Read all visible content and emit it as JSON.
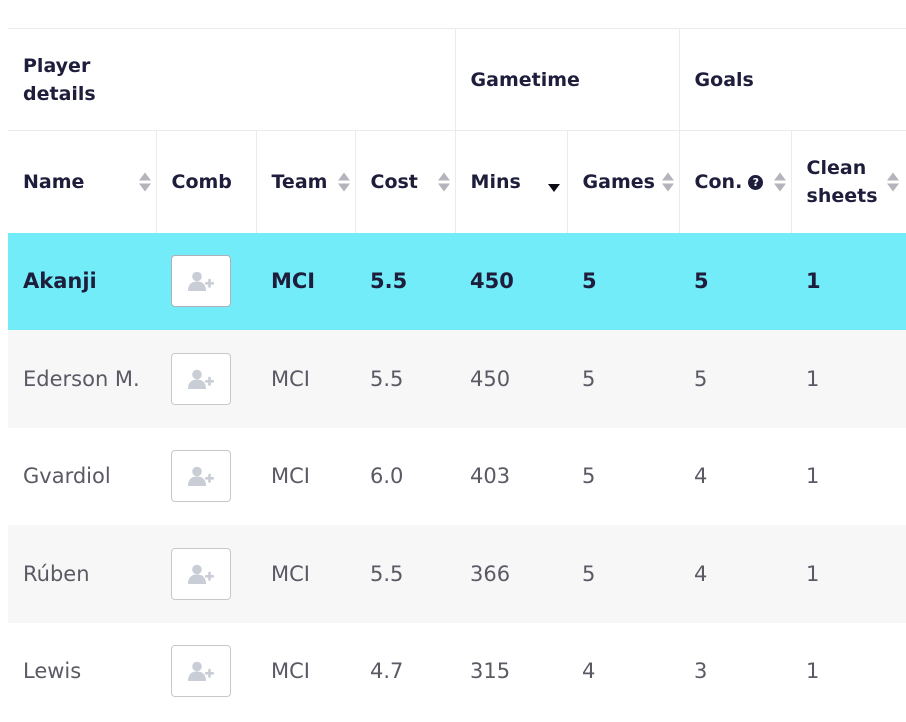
{
  "groups": [
    {
      "label": "Player details"
    },
    {
      "label": "Gametime"
    },
    {
      "label": "Goals"
    }
  ],
  "columns": {
    "name": "Name",
    "comb": "Comb",
    "team": "Team",
    "cost": "Cost",
    "mins": "Mins",
    "games": "Games",
    "con": "Con.",
    "clean_sheets": "Clean sheets"
  },
  "sort": {
    "active_column": "mins",
    "direction": "descending"
  },
  "rows": [
    {
      "name": "Akanji",
      "team": "MCI",
      "cost": "5.5",
      "mins": "450",
      "games": "5",
      "con": "5",
      "clean_sheets": "1",
      "highlighted": true
    },
    {
      "name": "Ederson M.",
      "team": "MCI",
      "cost": "5.5",
      "mins": "450",
      "games": "5",
      "con": "5",
      "clean_sheets": "1"
    },
    {
      "name": "Gvardiol",
      "team": "MCI",
      "cost": "6.0",
      "mins": "403",
      "games": "5",
      "con": "4",
      "clean_sheets": "1"
    },
    {
      "name": "Rúben",
      "team": "MCI",
      "cost": "5.5",
      "mins": "366",
      "games": "5",
      "con": "4",
      "clean_sheets": "1"
    },
    {
      "name": "Lewis",
      "team": "MCI",
      "cost": "4.7",
      "mins": "315",
      "games": "4",
      "con": "3",
      "clean_sheets": "1"
    }
  ],
  "icons": {
    "comb": "add-user-icon",
    "con_help": "help-icon"
  },
  "colors": {
    "highlight": "#72ecf8",
    "text_dark": "#1e1e3c",
    "alt_row": "#f7f7f7"
  }
}
